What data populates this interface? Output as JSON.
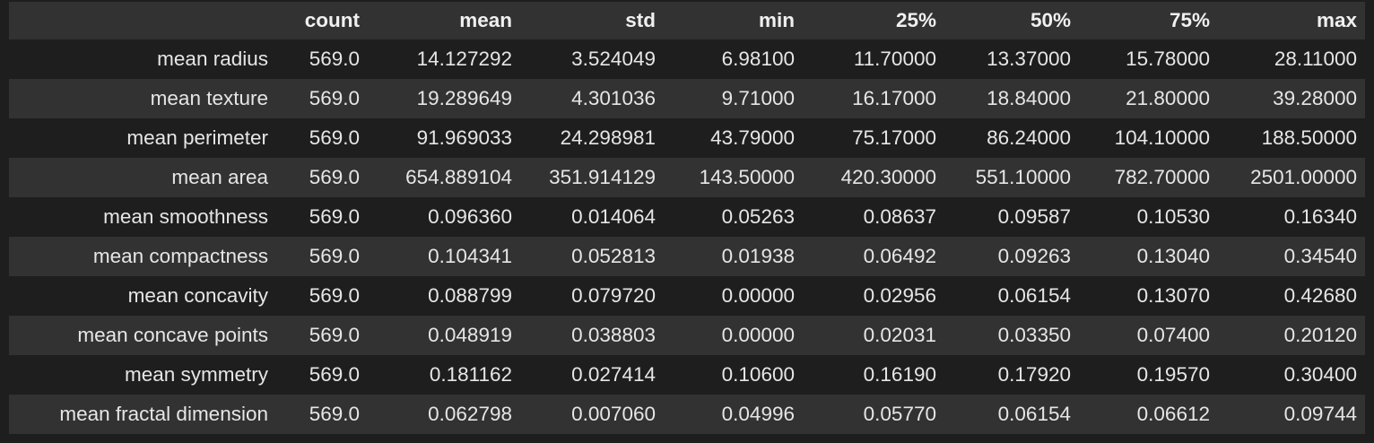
{
  "table": {
    "columns": [
      "",
      "count",
      "mean",
      "std",
      "min",
      "25%",
      "50%",
      "75%",
      "max"
    ],
    "rows": [
      {
        "label": "mean radius",
        "values": [
          "569.0",
          "14.127292",
          "3.524049",
          "6.98100",
          "11.70000",
          "13.37000",
          "15.78000",
          "28.11000"
        ]
      },
      {
        "label": "mean texture",
        "values": [
          "569.0",
          "19.289649",
          "4.301036",
          "9.71000",
          "16.17000",
          "18.84000",
          "21.80000",
          "39.28000"
        ]
      },
      {
        "label": "mean perimeter",
        "values": [
          "569.0",
          "91.969033",
          "24.298981",
          "43.79000",
          "75.17000",
          "86.24000",
          "104.10000",
          "188.50000"
        ]
      },
      {
        "label": "mean area",
        "values": [
          "569.0",
          "654.889104",
          "351.914129",
          "143.50000",
          "420.30000",
          "551.10000",
          "782.70000",
          "2501.00000"
        ]
      },
      {
        "label": "mean smoothness",
        "values": [
          "569.0",
          "0.096360",
          "0.014064",
          "0.05263",
          "0.08637",
          "0.09587",
          "0.10530",
          "0.16340"
        ]
      },
      {
        "label": "mean compactness",
        "values": [
          "569.0",
          "0.104341",
          "0.052813",
          "0.01938",
          "0.06492",
          "0.09263",
          "0.13040",
          "0.34540"
        ]
      },
      {
        "label": "mean concavity",
        "values": [
          "569.0",
          "0.088799",
          "0.079720",
          "0.00000",
          "0.02956",
          "0.06154",
          "0.13070",
          "0.42680"
        ]
      },
      {
        "label": "mean concave points",
        "values": [
          "569.0",
          "0.048919",
          "0.038803",
          "0.00000",
          "0.02031",
          "0.03350",
          "0.07400",
          "0.20120"
        ]
      },
      {
        "label": "mean symmetry",
        "values": [
          "569.0",
          "0.181162",
          "0.027414",
          "0.10600",
          "0.16190",
          "0.17920",
          "0.19570",
          "0.30400"
        ]
      },
      {
        "label": "mean fractal dimension",
        "values": [
          "569.0",
          "0.062798",
          "0.007060",
          "0.04996",
          "0.05770",
          "0.06154",
          "0.06612",
          "0.09744"
        ]
      }
    ]
  },
  "colors": {
    "background": "#1e1e1e",
    "stripe": "#323232",
    "text": "#e6e6e6"
  }
}
